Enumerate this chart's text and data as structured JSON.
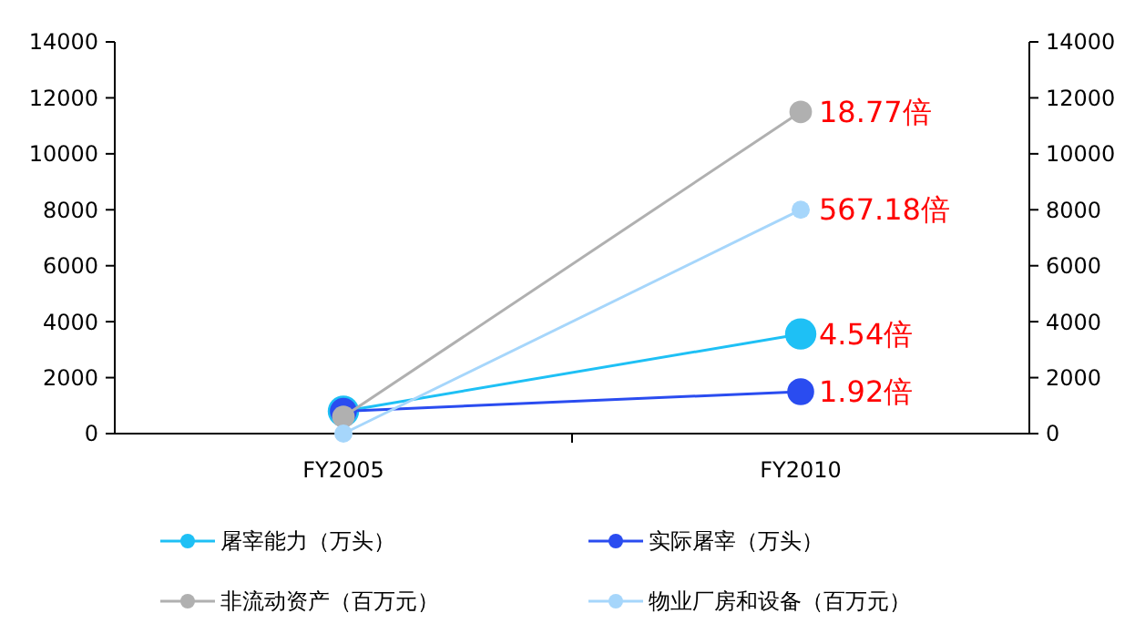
{
  "chart_data": {
    "type": "line",
    "categories": [
      "FY2005",
      "FY2010"
    ],
    "series": [
      {
        "name": "屠宰能力（万头）",
        "color": "#1ec0f5",
        "values": [
          800,
          3560
        ]
      },
      {
        "name": "实际屠宰（万头）",
        "color": "#2a4cf0",
        "values": [
          800,
          1500
        ]
      },
      {
        "name": "非流动资产（百万元）",
        "color": "#b0b0b0",
        "values": [
          600,
          11500
        ]
      },
      {
        "name": "物业厂房和设备（百万元）",
        "color": "#a6d6fb",
        "values": [
          0,
          8000
        ]
      }
    ],
    "ylim": [
      0,
      14000
    ],
    "yticks": [
      0,
      2000,
      4000,
      6000,
      8000,
      10000,
      12000,
      14000
    ],
    "y2lim": [
      0,
      14000
    ],
    "y2ticks": [
      0,
      2000,
      4000,
      6000,
      8000,
      10000,
      12000,
      14000
    ],
    "annotations": [
      {
        "text": "18.77倍",
        "x": "FY2010",
        "y": 11500
      },
      {
        "text": "567.18倍",
        "x": "FY2010",
        "y": 8000
      },
      {
        "text": "4.54倍",
        "x": "FY2010",
        "y": 3560
      },
      {
        "text": "1.92倍",
        "x": "FY2010",
        "y": 1500
      }
    ],
    "grid": false,
    "legend": "bottom",
    "marker": "circle",
    "line_style": "solid"
  }
}
